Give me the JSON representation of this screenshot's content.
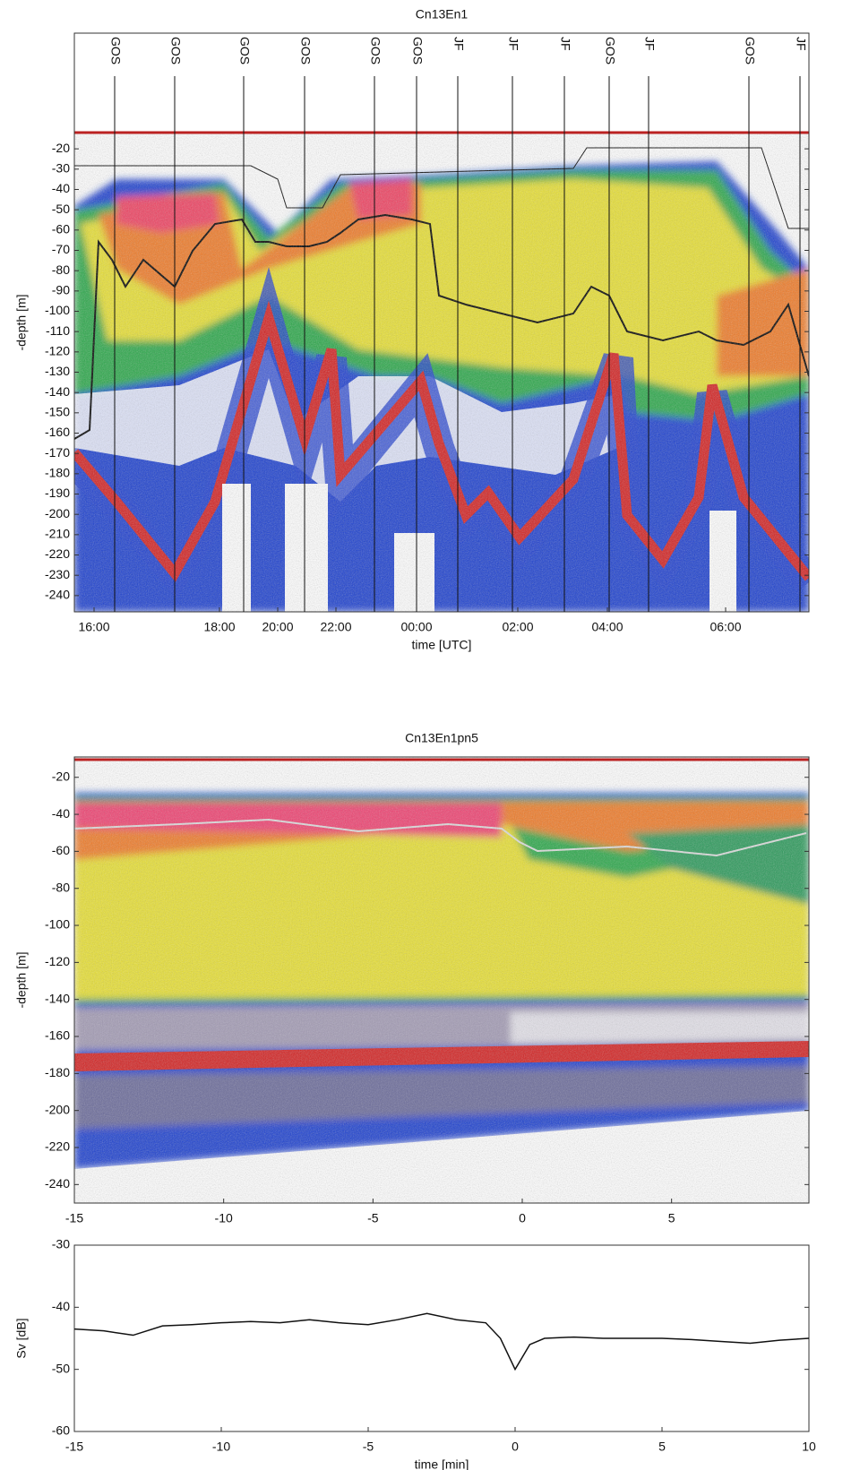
{
  "chart_data": [
    {
      "type": "echogram",
      "title": "Cn13En1",
      "ylabel": "-depth [m]",
      "xlabel": "time [UTC]",
      "ylim": [
        -248,
        -12
      ],
      "yticks": [
        -20,
        -30,
        -40,
        -50,
        -60,
        -70,
        -80,
        -90,
        -100,
        -110,
        -120,
        -130,
        -140,
        -150,
        -160,
        -170,
        -180,
        -190,
        -200,
        -210,
        -220,
        -230,
        -240
      ],
      "xticks": [
        "16:00",
        "18:00",
        "20:00",
        "22:00",
        "00:00",
        "02:00",
        "04:00",
        "06:00"
      ],
      "events": [
        "GOS",
        "GOS",
        "GOS",
        "GOS",
        "GOS",
        "GOS",
        "JF",
        "JF",
        "JF",
        "GOS",
        "JF",
        "GOS",
        "JF"
      ]
    },
    {
      "type": "echogram",
      "title": "Cn13En1pn5",
      "ylabel": "-depth [m]",
      "ylim": [
        -250,
        -9
      ],
      "xlim": [
        -15,
        9.6
      ],
      "yticks": [
        -20,
        -40,
        -60,
        -80,
        -100,
        -120,
        -140,
        -160,
        -180,
        -200,
        -220,
        -240
      ],
      "xticks": [
        -15,
        -10,
        -5,
        0,
        5
      ]
    },
    {
      "type": "line",
      "ylabel": "Sv [dB]",
      "xlabel": "time [min]",
      "color": "#111111",
      "xlim": [
        -15,
        10
      ],
      "ylim": [
        -60,
        -30
      ],
      "xticks": [
        -15,
        -10,
        -5,
        0,
        5,
        10
      ],
      "yticks": [
        -30,
        -40,
        -50,
        -60
      ],
      "x": [
        -15,
        -14,
        -13,
        -12,
        -11,
        -10,
        -9,
        -8,
        -7,
        -6,
        -5,
        -4,
        -3,
        -2,
        -1,
        -0.5,
        0,
        0.5,
        1,
        2,
        3,
        4,
        5,
        6,
        7,
        8,
        9,
        10
      ],
      "values": [
        -43.5,
        -43.8,
        -44.5,
        -43,
        -42.8,
        -42.5,
        -42.3,
        -42.5,
        -42,
        -42.5,
        -42.8,
        -42,
        -41,
        -42,
        -42.5,
        -45,
        -50,
        -46,
        -45,
        -44.8,
        -45,
        -45,
        -45,
        -45.2,
        -45.5,
        -45.8,
        -45.3,
        -45
      ]
    }
  ]
}
